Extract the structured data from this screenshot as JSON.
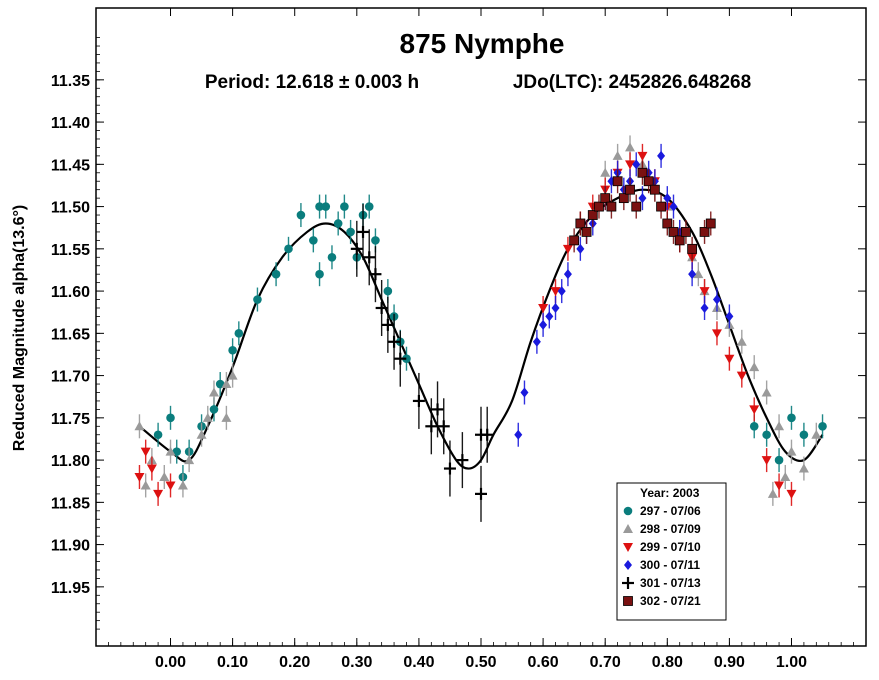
{
  "chart_data": {
    "type": "scatter",
    "title": "875 Nymphe",
    "subtitle_left": "Period: 12.618 ± 0.003 h",
    "subtitle_right": "JDo(LTC): 2452826.648268",
    "xlabel": "",
    "ylabel": "Reduced Magnitude alpha(13.6°)",
    "xlim": [
      -0.12,
      1.12
    ],
    "ylim": [
      12.02,
      11.265
    ],
    "y_inverted": true,
    "xticks": [
      "0.00",
      "0.10",
      "0.20",
      "0.30",
      "0.40",
      "0.50",
      "0.60",
      "0.70",
      "0.80",
      "0.90",
      "1.00"
    ],
    "yticks": [
      "11.35",
      "11.40",
      "11.45",
      "11.50",
      "11.55",
      "11.60",
      "11.65",
      "11.70",
      "11.75",
      "11.80",
      "11.85",
      "11.90",
      "11.95"
    ],
    "grid": false,
    "legend_position": "bottom-right",
    "legend_title": "Year: 2003",
    "colors": {
      "teal": "#0a7d7d",
      "gray": "#9a9a9a",
      "red": "#dd1111",
      "blue": "#1a1add",
      "black": "#000000",
      "maroon": "#7a1111"
    },
    "series": [
      {
        "name": "297 - 07/06",
        "marker": "circle",
        "color": "#0a7d7d",
        "points": [
          [
            -0.02,
            11.77
          ],
          [
            0.0,
            11.75
          ],
          [
            0.01,
            11.79
          ],
          [
            0.02,
            11.82
          ],
          [
            0.03,
            11.79
          ],
          [
            0.05,
            11.76
          ],
          [
            0.07,
            11.74
          ],
          [
            0.08,
            11.71
          ],
          [
            0.1,
            11.67
          ],
          [
            0.11,
            11.65
          ],
          [
            0.14,
            11.61
          ],
          [
            0.17,
            11.58
          ],
          [
            0.19,
            11.55
          ],
          [
            0.21,
            11.51
          ],
          [
            0.23,
            11.54
          ],
          [
            0.24,
            11.5
          ],
          [
            0.25,
            11.5
          ],
          [
            0.24,
            11.58
          ],
          [
            0.26,
            11.56
          ],
          [
            0.27,
            11.52
          ],
          [
            0.28,
            11.5
          ],
          [
            0.29,
            11.53
          ],
          [
            0.3,
            11.56
          ],
          [
            0.31,
            11.51
          ],
          [
            0.32,
            11.5
          ],
          [
            0.33,
            11.54
          ],
          [
            0.35,
            11.6
          ],
          [
            0.36,
            11.63
          ],
          [
            0.37,
            11.66
          ],
          [
            0.38,
            11.68
          ],
          [
            0.94,
            11.76
          ],
          [
            0.96,
            11.77
          ],
          [
            0.98,
            11.8
          ],
          [
            1.0,
            11.75
          ],
          [
            1.02,
            11.77
          ],
          [
            1.05,
            11.76
          ]
        ]
      },
      {
        "name": "298 - 07/09",
        "marker": "triangle-up",
        "color": "#9a9a9a",
        "points": [
          [
            -0.05,
            11.76
          ],
          [
            -0.04,
            11.83
          ],
          [
            -0.03,
            11.8
          ],
          [
            -0.01,
            11.82
          ],
          [
            0.0,
            11.79
          ],
          [
            0.02,
            11.83
          ],
          [
            0.03,
            11.8
          ],
          [
            0.05,
            11.77
          ],
          [
            0.06,
            11.75
          ],
          [
            0.07,
            11.72
          ],
          [
            0.09,
            11.71
          ],
          [
            0.1,
            11.7
          ],
          [
            0.09,
            11.75
          ],
          [
            0.7,
            11.46
          ],
          [
            0.72,
            11.44
          ],
          [
            0.74,
            11.43
          ],
          [
            0.76,
            11.45
          ],
          [
            0.78,
            11.48
          ],
          [
            0.8,
            11.5
          ],
          [
            0.82,
            11.53
          ],
          [
            0.84,
            11.56
          ],
          [
            0.85,
            11.58
          ],
          [
            0.86,
            11.6
          ],
          [
            0.88,
            11.62
          ],
          [
            0.9,
            11.64
          ],
          [
            0.92,
            11.66
          ],
          [
            0.94,
            11.69
          ],
          [
            0.96,
            11.72
          ],
          [
            0.98,
            11.76
          ],
          [
            1.0,
            11.79
          ],
          [
            1.02,
            11.81
          ],
          [
            1.04,
            11.77
          ],
          [
            0.97,
            11.84
          ],
          [
            0.99,
            11.82
          ]
        ]
      },
      {
        "name": "299 - 07/10",
        "marker": "triangle-down",
        "color": "#dd1111",
        "points": [
          [
            -0.05,
            11.82
          ],
          [
            -0.04,
            11.79
          ],
          [
            -0.03,
            11.81
          ],
          [
            -0.02,
            11.84
          ],
          [
            0.0,
            11.83
          ],
          [
            0.6,
            11.62
          ],
          [
            0.62,
            11.6
          ],
          [
            0.64,
            11.55
          ],
          [
            0.66,
            11.52
          ],
          [
            0.68,
            11.5
          ],
          [
            0.7,
            11.48
          ],
          [
            0.72,
            11.46
          ],
          [
            0.74,
            11.45
          ],
          [
            0.76,
            11.44
          ],
          [
            0.78,
            11.47
          ],
          [
            0.8,
            11.5
          ],
          [
            0.82,
            11.54
          ],
          [
            0.84,
            11.56
          ],
          [
            0.86,
            11.6
          ],
          [
            0.88,
            11.65
          ],
          [
            0.9,
            11.68
          ],
          [
            0.92,
            11.7
          ],
          [
            0.94,
            11.74
          ],
          [
            0.96,
            11.8
          ],
          [
            0.98,
            11.83
          ],
          [
            1.0,
            11.84
          ]
        ]
      },
      {
        "name": "300 - 07/11",
        "marker": "diamond",
        "color": "#1a1add",
        "points": [
          [
            0.56,
            11.77
          ],
          [
            0.57,
            11.72
          ],
          [
            0.59,
            11.66
          ],
          [
            0.6,
            11.64
          ],
          [
            0.61,
            11.63
          ],
          [
            0.62,
            11.62
          ],
          [
            0.63,
            11.6
          ],
          [
            0.64,
            11.58
          ],
          [
            0.66,
            11.55
          ],
          [
            0.67,
            11.53
          ],
          [
            0.68,
            11.52
          ],
          [
            0.7,
            11.49
          ],
          [
            0.71,
            11.47
          ],
          [
            0.72,
            11.46
          ],
          [
            0.73,
            11.48
          ],
          [
            0.74,
            11.47
          ],
          [
            0.75,
            11.45
          ],
          [
            0.76,
            11.49
          ],
          [
            0.77,
            11.46
          ],
          [
            0.78,
            11.47
          ],
          [
            0.79,
            11.44
          ],
          [
            0.8,
            11.49
          ],
          [
            0.81,
            11.5
          ],
          [
            0.82,
            11.53
          ],
          [
            0.84,
            11.58
          ],
          [
            0.86,
            11.62
          ],
          [
            0.88,
            11.61
          ],
          [
            0.9,
            11.63
          ]
        ]
      },
      {
        "name": "301 - 07/13",
        "marker": "plus",
        "color": "#000000",
        "points": [
          [
            0.3,
            11.55
          ],
          [
            0.31,
            11.53
          ],
          [
            0.32,
            11.56
          ],
          [
            0.33,
            11.58
          ],
          [
            0.34,
            11.62
          ],
          [
            0.35,
            11.64
          ],
          [
            0.36,
            11.66
          ],
          [
            0.37,
            11.68
          ],
          [
            0.4,
            11.73
          ],
          [
            0.42,
            11.76
          ],
          [
            0.43,
            11.74
          ],
          [
            0.44,
            11.76
          ],
          [
            0.45,
            11.81
          ],
          [
            0.47,
            11.8
          ],
          [
            0.5,
            11.77
          ],
          [
            0.5,
            11.84
          ],
          [
            0.51,
            11.77
          ]
        ]
      },
      {
        "name": "302 - 07/21",
        "marker": "square",
        "color": "#7a1111",
        "points": [
          [
            0.65,
            11.54
          ],
          [
            0.66,
            11.52
          ],
          [
            0.67,
            11.53
          ],
          [
            0.68,
            11.51
          ],
          [
            0.69,
            11.5
          ],
          [
            0.7,
            11.49
          ],
          [
            0.71,
            11.5
          ],
          [
            0.72,
            11.47
          ],
          [
            0.73,
            11.49
          ],
          [
            0.74,
            11.48
          ],
          [
            0.75,
            11.5
          ],
          [
            0.76,
            11.46
          ],
          [
            0.77,
            11.47
          ],
          [
            0.78,
            11.48
          ],
          [
            0.79,
            11.5
          ],
          [
            0.8,
            11.52
          ],
          [
            0.81,
            11.53
          ],
          [
            0.82,
            11.54
          ],
          [
            0.83,
            11.53
          ],
          [
            0.84,
            11.55
          ],
          [
            0.86,
            11.53
          ],
          [
            0.87,
            11.52
          ]
        ]
      }
    ],
    "fit_curve": {
      "color": "#000000",
      "points": [
        [
          -0.05,
          11.76
        ],
        [
          0.0,
          11.79
        ],
        [
          0.03,
          11.8
        ],
        [
          0.06,
          11.76
        ],
        [
          0.1,
          11.69
        ],
        [
          0.14,
          11.61
        ],
        [
          0.18,
          11.56
        ],
        [
          0.22,
          11.53
        ],
        [
          0.25,
          11.52
        ],
        [
          0.28,
          11.53
        ],
        [
          0.31,
          11.56
        ],
        [
          0.34,
          11.61
        ],
        [
          0.37,
          11.66
        ],
        [
          0.4,
          11.71
        ],
        [
          0.43,
          11.76
        ],
        [
          0.46,
          11.8
        ],
        [
          0.48,
          11.81
        ],
        [
          0.5,
          11.8
        ],
        [
          0.52,
          11.77
        ],
        [
          0.55,
          11.73
        ],
        [
          0.58,
          11.66
        ],
        [
          0.61,
          11.6
        ],
        [
          0.64,
          11.55
        ],
        [
          0.68,
          11.51
        ],
        [
          0.72,
          11.49
        ],
        [
          0.76,
          11.48
        ],
        [
          0.8,
          11.49
        ],
        [
          0.84,
          11.53
        ],
        [
          0.87,
          11.58
        ],
        [
          0.9,
          11.64
        ],
        [
          0.93,
          11.7
        ],
        [
          0.96,
          11.75
        ],
        [
          0.99,
          11.79
        ],
        [
          1.02,
          11.8
        ],
        [
          1.05,
          11.77
        ]
      ]
    }
  }
}
